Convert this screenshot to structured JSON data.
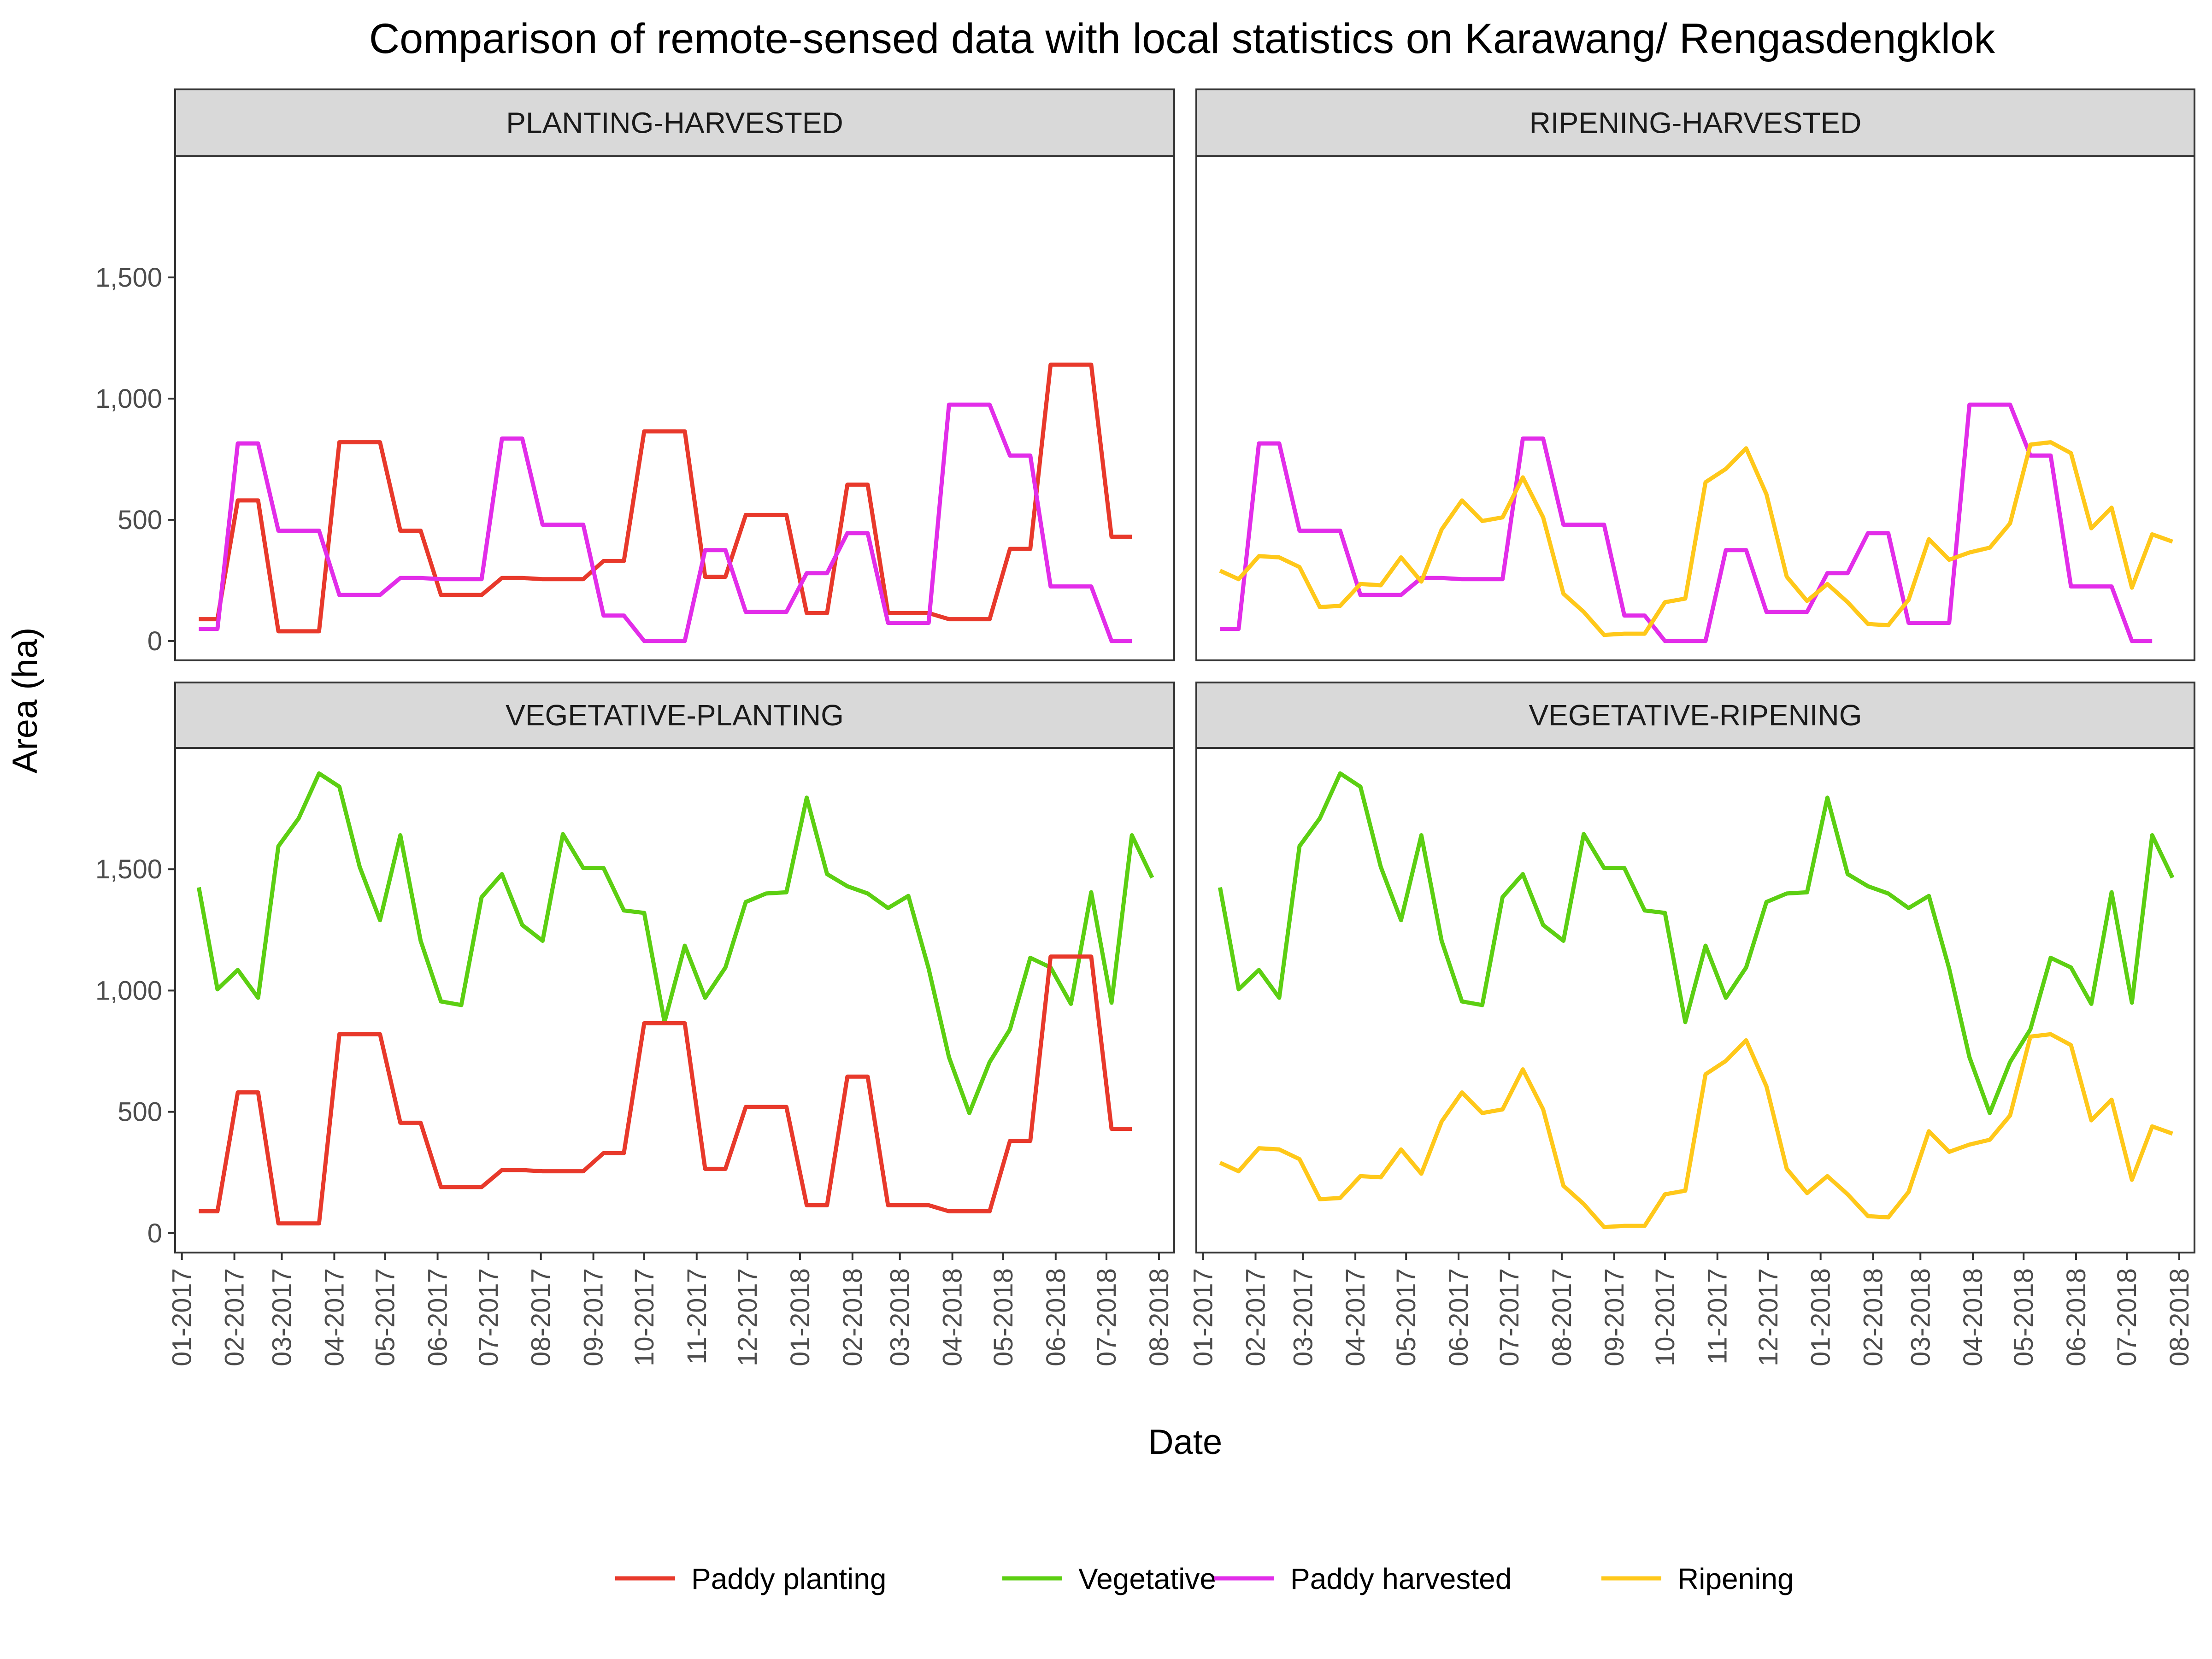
{
  "chart_data": {
    "type": "line",
    "title": "Comparison of remote-sensed data with local statistics on Karawang/ Rengasdengklok",
    "xlabel": "Date",
    "ylabel": "Area (ha)",
    "ylim": [
      -80,
      2000
    ],
    "y_ticks": [
      0,
      500,
      1000,
      1500
    ],
    "y_tick_labels": [
      "0",
      "500",
      "1,000",
      "1,500"
    ],
    "x_tick_labels": [
      "01-2017",
      "02-2017",
      "03-2017",
      "04-2017",
      "05-2017",
      "06-2017",
      "07-2017",
      "08-2017",
      "09-2017",
      "10-2017",
      "11-2017",
      "12-2017",
      "01-2018",
      "02-2018",
      "03-2018",
      "04-2018",
      "05-2018",
      "06-2018",
      "07-2018",
      "08-2018"
    ],
    "x_range": [
      "2016-12-28",
      "2018-08-10"
    ],
    "grid": false,
    "legend_position": "bottom",
    "series_styles": {
      "Paddy planting": "#e8392b",
      "Vegetative": "#5ccf12",
      "Paddy harvested": "#e22de9",
      "Ripening": "#ffc81a"
    },
    "series": [
      {
        "name": "Paddy planting",
        "color": "#e8392b",
        "points": [
          [
            "2017-01-11",
            90
          ],
          [
            "2017-01-22",
            90
          ],
          [
            "2017-02-03",
            580
          ],
          [
            "2017-02-15",
            580
          ],
          [
            "2017-02-27",
            40
          ],
          [
            "2017-03-11",
            40
          ],
          [
            "2017-03-23",
            40
          ],
          [
            "2017-04-04",
            820
          ],
          [
            "2017-04-16",
            820
          ],
          [
            "2017-04-28",
            820
          ],
          [
            "2017-05-10",
            455
          ],
          [
            "2017-05-22",
            455
          ],
          [
            "2017-06-03",
            190
          ],
          [
            "2017-06-15",
            190
          ],
          [
            "2017-06-27",
            190
          ],
          [
            "2017-07-09",
            260
          ],
          [
            "2017-07-21",
            260
          ],
          [
            "2017-08-02",
            255
          ],
          [
            "2017-08-14",
            255
          ],
          [
            "2017-08-26",
            255
          ],
          [
            "2017-09-07",
            330
          ],
          [
            "2017-09-19",
            330
          ],
          [
            "2017-10-01",
            865
          ],
          [
            "2017-10-13",
            865
          ],
          [
            "2017-10-25",
            865
          ],
          [
            "2017-11-06",
            265
          ],
          [
            "2017-11-18",
            265
          ],
          [
            "2017-11-30",
            520
          ],
          [
            "2017-12-12",
            520
          ],
          [
            "2017-12-24",
            520
          ],
          [
            "2018-01-05",
            115
          ],
          [
            "2018-01-17",
            115
          ],
          [
            "2018-01-29",
            645
          ],
          [
            "2018-02-10",
            645
          ],
          [
            "2018-02-22",
            115
          ],
          [
            "2018-03-06",
            115
          ],
          [
            "2018-03-18",
            115
          ],
          [
            "2018-03-30",
            90
          ],
          [
            "2018-04-11",
            90
          ],
          [
            "2018-04-23",
            90
          ],
          [
            "2018-05-05",
            380
          ],
          [
            "2018-05-17",
            380
          ],
          [
            "2018-05-29",
            1140
          ],
          [
            "2018-06-10",
            1140
          ],
          [
            "2018-06-22",
            1140
          ],
          [
            "2018-07-04",
            430
          ],
          [
            "2018-07-16",
            430
          ]
        ]
      },
      {
        "name": "Vegetative",
        "color": "#5ccf12",
        "points": [
          [
            "2017-01-11",
            1425
          ],
          [
            "2017-01-22",
            1005
          ],
          [
            "2017-02-03",
            1085
          ],
          [
            "2017-02-15",
            970
          ],
          [
            "2017-02-27",
            1595
          ],
          [
            "2017-03-11",
            1710
          ],
          [
            "2017-03-23",
            1895
          ],
          [
            "2017-04-04",
            1840
          ],
          [
            "2017-04-16",
            1510
          ],
          [
            "2017-04-28",
            1290
          ],
          [
            "2017-05-10",
            1640
          ],
          [
            "2017-05-22",
            1205
          ],
          [
            "2017-06-03",
            955
          ],
          [
            "2017-06-15",
            940
          ],
          [
            "2017-06-27",
            1385
          ],
          [
            "2017-07-09",
            1480
          ],
          [
            "2017-07-21",
            1270
          ],
          [
            "2017-08-02",
            1205
          ],
          [
            "2017-08-14",
            1645
          ],
          [
            "2017-08-26",
            1505
          ],
          [
            "2017-09-07",
            1505
          ],
          [
            "2017-09-19",
            1330
          ],
          [
            "2017-10-01",
            1320
          ],
          [
            "2017-10-13",
            870
          ],
          [
            "2017-10-25",
            1185
          ],
          [
            "2017-11-06",
            970
          ],
          [
            "2017-11-18",
            1095
          ],
          [
            "2017-11-30",
            1365
          ],
          [
            "2017-12-12",
            1400
          ],
          [
            "2017-12-24",
            1405
          ],
          [
            "2018-01-05",
            1795
          ],
          [
            "2018-01-17",
            1480
          ],
          [
            "2018-01-29",
            1430
          ],
          [
            "2018-02-10",
            1400
          ],
          [
            "2018-02-22",
            1340
          ],
          [
            "2018-03-06",
            1390
          ],
          [
            "2018-03-18",
            1090
          ],
          [
            "2018-03-30",
            725
          ],
          [
            "2018-04-11",
            495
          ],
          [
            "2018-04-23",
            705
          ],
          [
            "2018-05-05",
            840
          ],
          [
            "2018-05-17",
            1135
          ],
          [
            "2018-05-29",
            1095
          ],
          [
            "2018-06-10",
            945
          ],
          [
            "2018-06-22",
            1405
          ],
          [
            "2018-07-04",
            950
          ],
          [
            "2018-07-16",
            1640
          ],
          [
            "2018-07-28",
            1465
          ]
        ]
      },
      {
        "name": "Paddy harvested",
        "color": "#e22de9",
        "points": [
          [
            "2017-01-11",
            50
          ],
          [
            "2017-01-22",
            50
          ],
          [
            "2017-02-03",
            815
          ],
          [
            "2017-02-15",
            815
          ],
          [
            "2017-02-27",
            455
          ],
          [
            "2017-03-11",
            455
          ],
          [
            "2017-03-23",
            455
          ],
          [
            "2017-04-04",
            190
          ],
          [
            "2017-04-16",
            190
          ],
          [
            "2017-04-28",
            190
          ],
          [
            "2017-05-10",
            260
          ],
          [
            "2017-05-22",
            260
          ],
          [
            "2017-06-03",
            255
          ],
          [
            "2017-06-15",
            255
          ],
          [
            "2017-06-27",
            255
          ],
          [
            "2017-07-09",
            835
          ],
          [
            "2017-07-21",
            835
          ],
          [
            "2017-08-02",
            480
          ],
          [
            "2017-08-14",
            480
          ],
          [
            "2017-08-26",
            480
          ],
          [
            "2017-09-07",
            105
          ],
          [
            "2017-09-19",
            105
          ],
          [
            "2017-10-01",
            0
          ],
          [
            "2017-10-13",
            0
          ],
          [
            "2017-10-25",
            0
          ],
          [
            "2017-11-06",
            375
          ],
          [
            "2017-11-18",
            375
          ],
          [
            "2017-11-30",
            120
          ],
          [
            "2017-12-12",
            120
          ],
          [
            "2017-12-24",
            120
          ],
          [
            "2018-01-05",
            280
          ],
          [
            "2018-01-17",
            280
          ],
          [
            "2018-01-29",
            445
          ],
          [
            "2018-02-10",
            445
          ],
          [
            "2018-02-22",
            75
          ],
          [
            "2018-03-06",
            75
          ],
          [
            "2018-03-18",
            75
          ],
          [
            "2018-03-30",
            975
          ],
          [
            "2018-04-11",
            975
          ],
          [
            "2018-04-23",
            975
          ],
          [
            "2018-05-05",
            765
          ],
          [
            "2018-05-17",
            765
          ],
          [
            "2018-05-29",
            225
          ],
          [
            "2018-06-10",
            225
          ],
          [
            "2018-06-22",
            225
          ],
          [
            "2018-07-04",
            0
          ],
          [
            "2018-07-16",
            0
          ]
        ]
      },
      {
        "name": "Ripening",
        "color": "#ffc81a",
        "points": [
          [
            "2017-01-11",
            290
          ],
          [
            "2017-01-22",
            255
          ],
          [
            "2017-02-03",
            350
          ],
          [
            "2017-02-15",
            345
          ],
          [
            "2017-02-27",
            305
          ],
          [
            "2017-03-11",
            140
          ],
          [
            "2017-03-23",
            145
          ],
          [
            "2017-04-04",
            235
          ],
          [
            "2017-04-16",
            230
          ],
          [
            "2017-04-28",
            345
          ],
          [
            "2017-05-10",
            245
          ],
          [
            "2017-05-22",
            460
          ],
          [
            "2017-06-03",
            580
          ],
          [
            "2017-06-15",
            495
          ],
          [
            "2017-06-27",
            510
          ],
          [
            "2017-07-09",
            675
          ],
          [
            "2017-07-21",
            510
          ],
          [
            "2017-08-02",
            195
          ],
          [
            "2017-08-14",
            120
          ],
          [
            "2017-08-26",
            25
          ],
          [
            "2017-09-07",
            30
          ],
          [
            "2017-09-19",
            30
          ],
          [
            "2017-10-01",
            160
          ],
          [
            "2017-10-13",
            175
          ],
          [
            "2017-10-25",
            655
          ],
          [
            "2017-11-06",
            710
          ],
          [
            "2017-11-18",
            795
          ],
          [
            "2017-11-30",
            605
          ],
          [
            "2017-12-12",
            265
          ],
          [
            "2017-12-24",
            165
          ],
          [
            "2018-01-05",
            235
          ],
          [
            "2018-01-17",
            160
          ],
          [
            "2018-01-29",
            70
          ],
          [
            "2018-02-10",
            65
          ],
          [
            "2018-02-22",
            170
          ],
          [
            "2018-03-06",
            420
          ],
          [
            "2018-03-18",
            335
          ],
          [
            "2018-03-30",
            365
          ],
          [
            "2018-04-11",
            385
          ],
          [
            "2018-04-23",
            485
          ],
          [
            "2018-05-05",
            810
          ],
          [
            "2018-05-17",
            820
          ],
          [
            "2018-05-29",
            775
          ],
          [
            "2018-06-10",
            465
          ],
          [
            "2018-06-22",
            550
          ],
          [
            "2018-07-04",
            220
          ],
          [
            "2018-07-16",
            440
          ],
          [
            "2018-07-28",
            410
          ]
        ]
      }
    ],
    "panels": [
      {
        "strip": "PLANTING-HARVESTED",
        "series": [
          "Paddy planting",
          "Paddy harvested"
        ]
      },
      {
        "strip": "RIPENING-HARVESTED",
        "series": [
          "Paddy harvested",
          "Ripening"
        ]
      },
      {
        "strip": "VEGETATIVE-PLANTING",
        "series": [
          "Vegetative",
          "Paddy planting"
        ]
      },
      {
        "strip": "VEGETATIVE-RIPENING",
        "series": [
          "Vegetative",
          "Ripening"
        ]
      }
    ],
    "legend": [
      "Paddy planting",
      "Vegetative",
      "Paddy harvested",
      "Ripening"
    ]
  }
}
